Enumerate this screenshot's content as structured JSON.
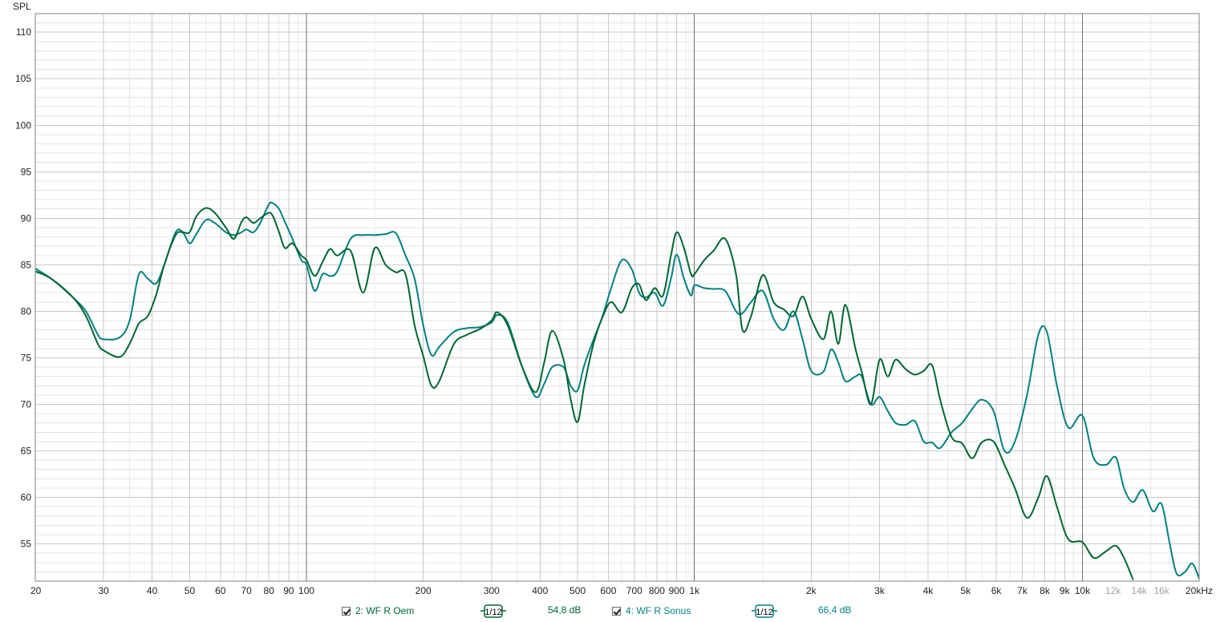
{
  "chart_data": {
    "type": "line",
    "title": "",
    "ylabel": "SPL",
    "xlabel": "",
    "x_scale": "log",
    "xlim": [
      20,
      20000
    ],
    "ylim": [
      51,
      112
    ],
    "grid": true,
    "y_ticks": [
      55,
      60,
      65,
      70,
      75,
      80,
      85,
      90,
      95,
      100,
      105,
      110
    ],
    "x_ticks": [
      {
        "v": 20,
        "label": "20"
      },
      {
        "v": 30,
        "label": "30"
      },
      {
        "v": 40,
        "label": "40"
      },
      {
        "v": 50,
        "label": "50"
      },
      {
        "v": 60,
        "label": "60"
      },
      {
        "v": 70,
        "label": "70"
      },
      {
        "v": 80,
        "label": "80"
      },
      {
        "v": 90,
        "label": "90"
      },
      {
        "v": 100,
        "label": "100"
      },
      {
        "v": 200,
        "label": "200"
      },
      {
        "v": 300,
        "label": "300"
      },
      {
        "v": 400,
        "label": "400"
      },
      {
        "v": 500,
        "label": "500"
      },
      {
        "v": 600,
        "label": "600"
      },
      {
        "v": 700,
        "label": "700"
      },
      {
        "v": 800,
        "label": "800"
      },
      {
        "v": 900,
        "label": "900"
      },
      {
        "v": 1000,
        "label": "1k"
      },
      {
        "v": 2000,
        "label": "2k"
      },
      {
        "v": 3000,
        "label": "3k"
      },
      {
        "v": 4000,
        "label": "4k"
      },
      {
        "v": 5000,
        "label": "5k"
      },
      {
        "v": 6000,
        "label": "6k"
      },
      {
        "v": 7000,
        "label": "7k"
      },
      {
        "v": 8000,
        "label": "8k"
      },
      {
        "v": 9000,
        "label": "9k"
      },
      {
        "v": 10000,
        "label": "10k"
      },
      {
        "v": 12000,
        "label": "12k",
        "light": true
      },
      {
        "v": 14000,
        "label": "14k",
        "light": true
      },
      {
        "v": 16000,
        "label": "16k",
        "light": true
      },
      {
        "v": 20000,
        "label": "20kHz"
      }
    ],
    "series": [
      {
        "name": "2: WF R Oem",
        "color": "#006633",
        "points": [
          [
            20,
            84.3
          ],
          [
            22,
            83.5
          ],
          [
            25,
            81.5
          ],
          [
            27,
            79.5
          ],
          [
            29,
            76.5
          ],
          [
            30,
            75.8
          ],
          [
            33,
            75.1
          ],
          [
            35,
            76.5
          ],
          [
            37,
            78.7
          ],
          [
            39,
            79.5
          ],
          [
            41,
            81.8
          ],
          [
            43,
            85.0
          ],
          [
            46,
            88.2
          ],
          [
            48,
            88.5
          ],
          [
            50,
            88.5
          ],
          [
            52,
            90.2
          ],
          [
            55,
            91.1
          ],
          [
            58,
            90.6
          ],
          [
            62,
            89.0
          ],
          [
            65,
            87.8
          ],
          [
            68,
            89.6
          ],
          [
            70,
            90.1
          ],
          [
            73,
            89.5
          ],
          [
            76,
            90.0
          ],
          [
            80,
            90.6
          ],
          [
            82,
            90.2
          ],
          [
            85,
            88.5
          ],
          [
            88,
            86.8
          ],
          [
            92,
            87.3
          ],
          [
            97,
            86.0
          ],
          [
            100,
            85.5
          ],
          [
            105,
            83.8
          ],
          [
            110,
            85.3
          ],
          [
            115,
            86.7
          ],
          [
            120,
            86.0
          ],
          [
            130,
            86.5
          ],
          [
            140,
            82.0
          ],
          [
            150,
            86.8
          ],
          [
            160,
            85.0
          ],
          [
            170,
            84.2
          ],
          [
            180,
            84.0
          ],
          [
            190,
            78.5
          ],
          [
            200,
            75.2
          ],
          [
            210,
            72.0
          ],
          [
            220,
            72.5
          ],
          [
            240,
            76.5
          ],
          [
            260,
            77.5
          ],
          [
            280,
            78.1
          ],
          [
            300,
            79.0
          ],
          [
            310,
            79.9
          ],
          [
            330,
            78.5
          ],
          [
            360,
            74.0
          ],
          [
            390,
            71.3
          ],
          [
            410,
            74.5
          ],
          [
            430,
            77.9
          ],
          [
            460,
            74.8
          ],
          [
            480,
            70.5
          ],
          [
            500,
            68.1
          ],
          [
            520,
            72.0
          ],
          [
            550,
            76.6
          ],
          [
            580,
            79.4
          ],
          [
            610,
            81.0
          ],
          [
            650,
            79.9
          ],
          [
            690,
            82.5
          ],
          [
            720,
            82.9
          ],
          [
            750,
            81.2
          ],
          [
            790,
            82.5
          ],
          [
            830,
            81.7
          ],
          [
            870,
            86.0
          ],
          [
            900,
            88.5
          ],
          [
            940,
            86.8
          ],
          [
            980,
            84.0
          ],
          [
            1000,
            84.0
          ],
          [
            1060,
            85.5
          ],
          [
            1120,
            86.5
          ],
          [
            1200,
            87.8
          ],
          [
            1280,
            84.0
          ],
          [
            1330,
            78.0
          ],
          [
            1400,
            79.5
          ],
          [
            1500,
            83.9
          ],
          [
            1600,
            81.0
          ],
          [
            1700,
            80.2
          ],
          [
            1800,
            79.5
          ],
          [
            1900,
            81.6
          ],
          [
            2000,
            79.2
          ],
          [
            2150,
            77.0
          ],
          [
            2250,
            80.0
          ],
          [
            2350,
            76.5
          ],
          [
            2450,
            80.7
          ],
          [
            2600,
            76.0
          ],
          [
            2700,
            73.5
          ],
          [
            2850,
            70.0
          ],
          [
            3000,
            74.8
          ],
          [
            3150,
            73.0
          ],
          [
            3300,
            74.8
          ],
          [
            3500,
            73.8
          ],
          [
            3700,
            73.2
          ],
          [
            3900,
            73.6
          ],
          [
            4100,
            74.2
          ],
          [
            4300,
            70.5
          ],
          [
            4600,
            66.5
          ],
          [
            4900,
            65.8
          ],
          [
            5200,
            64.2
          ],
          [
            5500,
            65.9
          ],
          [
            5900,
            66.0
          ],
          [
            6300,
            63.5
          ],
          [
            6700,
            61.0
          ],
          [
            7200,
            57.8
          ],
          [
            7700,
            60.0
          ],
          [
            8100,
            62.3
          ],
          [
            8600,
            59.0
          ],
          [
            9200,
            55.5
          ],
          [
            10000,
            55.2
          ],
          [
            10700,
            53.5
          ],
          [
            11500,
            54.2
          ],
          [
            12200,
            54.8
          ],
          [
            12800,
            53.5
          ],
          [
            13500,
            51.2
          ]
        ]
      },
      {
        "name": "4: WF R Sonus",
        "color": "#008080",
        "points": [
          [
            20,
            84.6
          ],
          [
            22,
            83.5
          ],
          [
            25,
            81.5
          ],
          [
            27,
            80.0
          ],
          [
            29,
            77.5
          ],
          [
            30,
            77.0
          ],
          [
            33,
            77.2
          ],
          [
            35,
            79.0
          ],
          [
            37,
            84.0
          ],
          [
            39,
            83.5
          ],
          [
            41,
            83.0
          ],
          [
            43,
            85.0
          ],
          [
            46,
            88.5
          ],
          [
            48,
            88.5
          ],
          [
            50,
            87.3
          ],
          [
            52,
            88.3
          ],
          [
            55,
            89.8
          ],
          [
            58,
            89.5
          ],
          [
            62,
            88.5
          ],
          [
            65,
            88.2
          ],
          [
            68,
            88.5
          ],
          [
            70,
            88.8
          ],
          [
            73,
            88.5
          ],
          [
            76,
            89.5
          ],
          [
            80,
            91.5
          ],
          [
            82,
            91.6
          ],
          [
            85,
            91.0
          ],
          [
            88,
            89.6
          ],
          [
            92,
            87.8
          ],
          [
            97,
            85.5
          ],
          [
            100,
            85.0
          ],
          [
            105,
            82.2
          ],
          [
            110,
            84.0
          ],
          [
            115,
            83.8
          ],
          [
            120,
            84.3
          ],
          [
            130,
            87.8
          ],
          [
            140,
            88.2
          ],
          [
            150,
            88.2
          ],
          [
            160,
            88.3
          ],
          [
            170,
            88.4
          ],
          [
            180,
            86.0
          ],
          [
            190,
            83.5
          ],
          [
            200,
            78.5
          ],
          [
            210,
            75.3
          ],
          [
            220,
            76.2
          ],
          [
            240,
            77.8
          ],
          [
            260,
            78.2
          ],
          [
            280,
            78.3
          ],
          [
            300,
            78.8
          ],
          [
            310,
            79.6
          ],
          [
            330,
            78.8
          ],
          [
            360,
            74.0
          ],
          [
            390,
            70.8
          ],
          [
            410,
            72.2
          ],
          [
            430,
            74.0
          ],
          [
            460,
            74.0
          ],
          [
            480,
            72.0
          ],
          [
            500,
            71.5
          ],
          [
            520,
            74.2
          ],
          [
            550,
            77.0
          ],
          [
            580,
            79.5
          ],
          [
            610,
            82.5
          ],
          [
            650,
            85.5
          ],
          [
            690,
            84.5
          ],
          [
            720,
            82.0
          ],
          [
            750,
            81.5
          ],
          [
            790,
            82.0
          ],
          [
            830,
            80.6
          ],
          [
            870,
            83.5
          ],
          [
            900,
            86.1
          ],
          [
            940,
            83.5
          ],
          [
            980,
            81.7
          ],
          [
            1000,
            82.8
          ],
          [
            1060,
            82.5
          ],
          [
            1120,
            82.4
          ],
          [
            1200,
            82.2
          ],
          [
            1280,
            80.0
          ],
          [
            1330,
            79.8
          ],
          [
            1400,
            81.0
          ],
          [
            1500,
            82.2
          ],
          [
            1600,
            79.2
          ],
          [
            1700,
            78.0
          ],
          [
            1800,
            80.0
          ],
          [
            1900,
            77.0
          ],
          [
            2000,
            73.6
          ],
          [
            2150,
            73.5
          ],
          [
            2250,
            75.9
          ],
          [
            2350,
            74.5
          ],
          [
            2450,
            72.5
          ],
          [
            2600,
            73.0
          ],
          [
            2700,
            73.0
          ],
          [
            2850,
            70.0
          ],
          [
            3000,
            70.8
          ],
          [
            3150,
            69.3
          ],
          [
            3300,
            68.0
          ],
          [
            3500,
            67.8
          ],
          [
            3700,
            68.2
          ],
          [
            3900,
            66.0
          ],
          [
            4100,
            65.9
          ],
          [
            4300,
            65.3
          ],
          [
            4600,
            67.0
          ],
          [
            4900,
            68.0
          ],
          [
            5200,
            69.5
          ],
          [
            5500,
            70.5
          ],
          [
            5900,
            69.3
          ],
          [
            6300,
            65.0
          ],
          [
            6700,
            66.0
          ],
          [
            7200,
            71.0
          ],
          [
            7700,
            77.5
          ],
          [
            8100,
            77.8
          ],
          [
            8600,
            72.0
          ],
          [
            9200,
            67.5
          ],
          [
            10000,
            68.8
          ],
          [
            10700,
            64.2
          ],
          [
            11500,
            63.5
          ],
          [
            12200,
            64.3
          ],
          [
            12800,
            61.0
          ],
          [
            13500,
            59.5
          ],
          [
            14300,
            60.8
          ],
          [
            15200,
            58.5
          ],
          [
            16000,
            59.3
          ],
          [
            16800,
            55.0
          ],
          [
            17500,
            51.8
          ],
          [
            18400,
            52.0
          ],
          [
            19200,
            52.9
          ],
          [
            20000,
            51.3
          ]
        ]
      }
    ]
  },
  "legend": [
    {
      "label": "2: WF R Oem",
      "smoothing": "1/12",
      "level": "54,8 dB",
      "color": "#006633"
    },
    {
      "label": "4: WF R Sonus",
      "smoothing": "1/12",
      "level": "66,4 dB",
      "color": "#008080"
    }
  ]
}
